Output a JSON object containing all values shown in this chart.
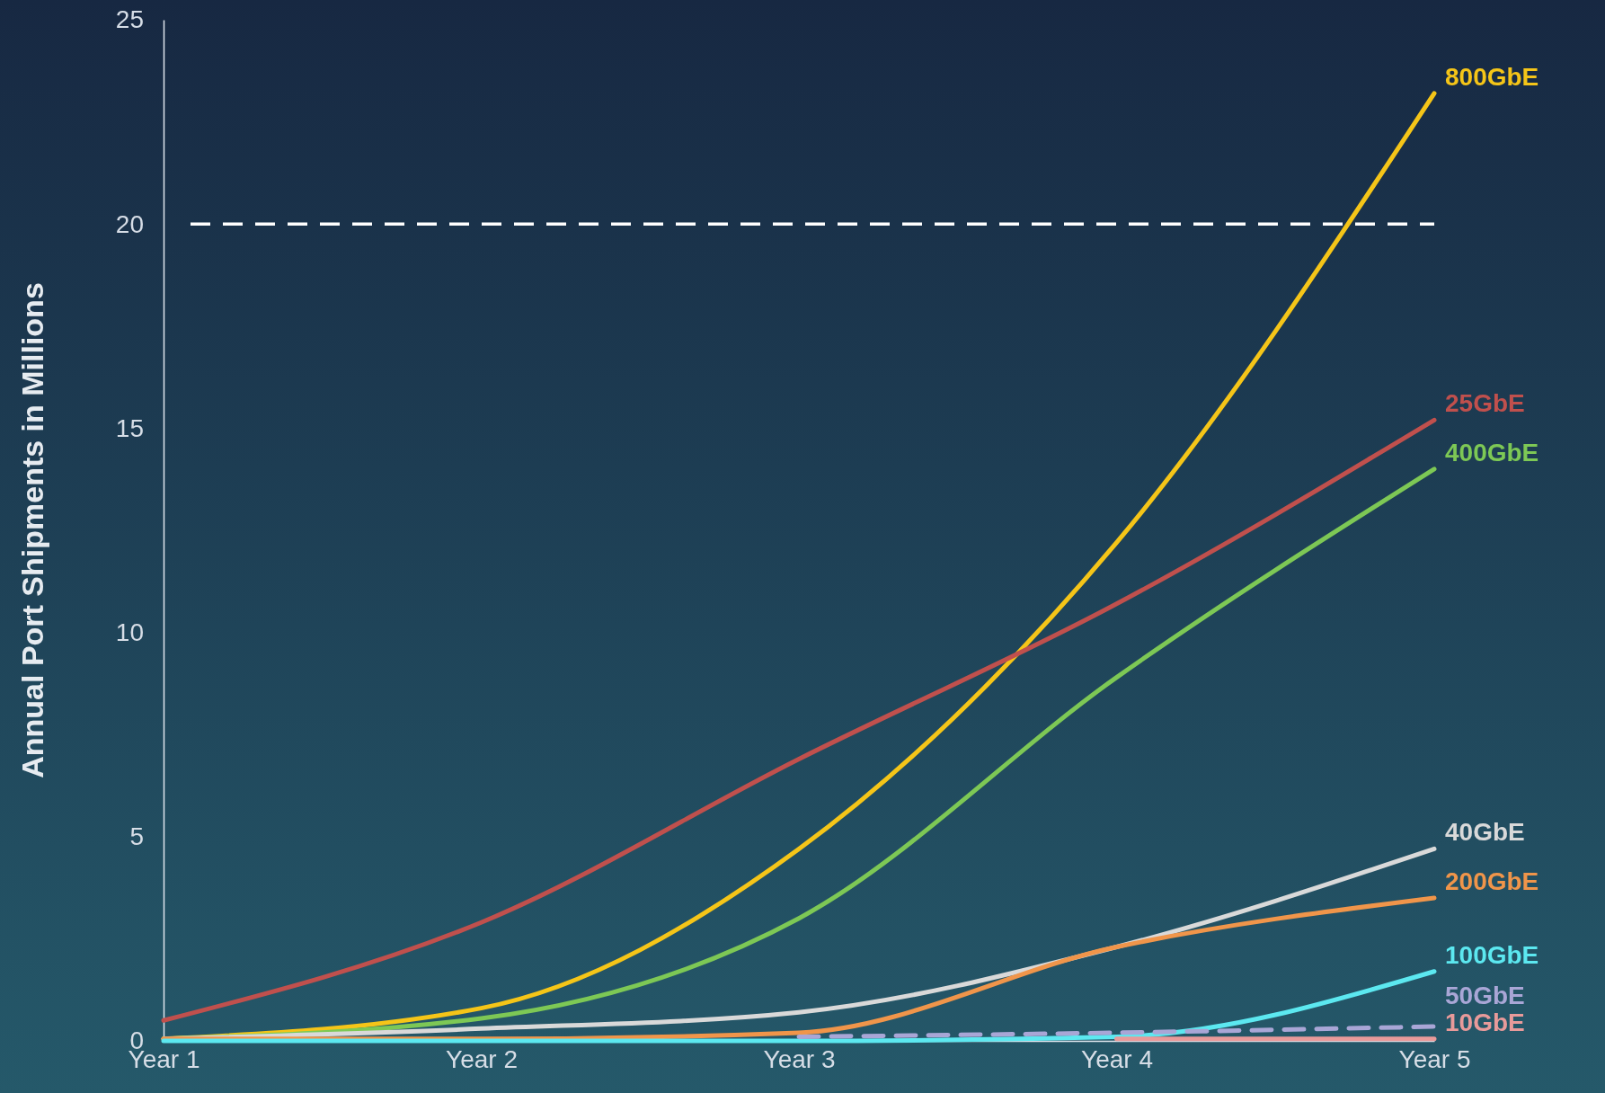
{
  "chart_data": {
    "type": "line",
    "ylabel": "Annual Port Shipments in Millions",
    "categories": [
      "Year 1",
      "Year 2",
      "Year 3",
      "Year 4",
      "Year 5"
    ],
    "ylim": [
      0,
      25
    ],
    "yticks": [
      0,
      5,
      10,
      15,
      20,
      25
    ],
    "grid": false,
    "legend": false,
    "ref_lines": [
      {
        "axis": "y",
        "value": 20,
        "color": "#ffffff",
        "line_style": "dashed"
      }
    ],
    "series": [
      {
        "name": "800GbE",
        "color": "#f5c518",
        "values": [
          0.05,
          0.8,
          4.7,
          12.2,
          23.2
        ]
      },
      {
        "name": "25GbE",
        "color": "#c0504d",
        "values": [
          0.5,
          2.9,
          6.9,
          10.7,
          15.2
        ]
      },
      {
        "name": "400GbE",
        "color": "#7dc855",
        "values": [
          0.05,
          0.55,
          3.0,
          8.9,
          14.0
        ]
      },
      {
        "name": "40GbE",
        "color": "#d9d9d9",
        "values": [
          0.05,
          0.3,
          0.7,
          2.3,
          4.7
        ]
      },
      {
        "name": "200GbE",
        "color": "#f0954a",
        "values": [
          0.05,
          0.05,
          0.2,
          2.3,
          3.5
        ]
      },
      {
        "name": "100GbE",
        "color": "#5ce8f0",
        "values": [
          0,
          0,
          0,
          0.1,
          1.7
        ]
      },
      {
        "name": "50GbE",
        "color": "#a9a6d6",
        "line_style": "dashed",
        "values": [
          null,
          null,
          0.1,
          0.2,
          0.35
        ]
      },
      {
        "name": "10GbE",
        "color": "#e89a9a",
        "values": [
          null,
          null,
          null,
          0.05,
          0.05
        ]
      }
    ]
  }
}
